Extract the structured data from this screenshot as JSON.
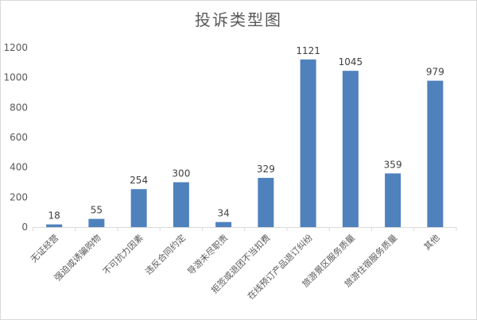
{
  "chart_data": {
    "type": "bar",
    "title": "投诉类型图",
    "categories": [
      "无证经营",
      "强迫或诱骗购物",
      "不可抗力因素",
      "违反合同约定",
      "导游未尽职责",
      "拒签或退团不当扣费",
      "在线预订产品退订纠纷",
      "旅游景区服务质量",
      "旅游住宿服务质量",
      "其他"
    ],
    "values": [
      18,
      55,
      254,
      300,
      34,
      329,
      1121,
      1045,
      359,
      979
    ],
    "ylim": [
      0,
      1200
    ],
    "yticks": [
      0,
      200,
      400,
      600,
      800,
      1000,
      1200
    ],
    "grid": false,
    "legend": "none",
    "data_labels": true,
    "bar_color": "#4f81bd"
  }
}
